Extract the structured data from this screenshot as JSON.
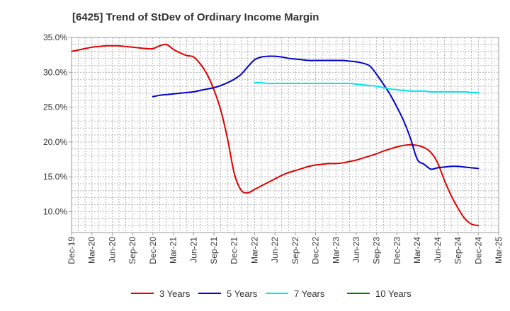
{
  "chart_data": {
    "type": "line",
    "title": "[6425]  Trend of StDev of Ordinary Income Margin",
    "xlabel": "",
    "ylabel": "",
    "x_ticks": [
      "Dec-19",
      "Mar-20",
      "Jun-20",
      "Sep-20",
      "Dec-20",
      "Mar-21",
      "Jun-21",
      "Sep-21",
      "Dec-21",
      "Mar-22",
      "Jun-22",
      "Sep-22",
      "Dec-22",
      "Mar-23",
      "Jun-23",
      "Sep-23",
      "Dec-23",
      "Mar-24",
      "Jun-24",
      "Sep-24",
      "Dec-24",
      "Mar-25"
    ],
    "y_ticks": [
      "10.0%",
      "15.0%",
      "20.0%",
      "25.0%",
      "30.0%",
      "35.0%"
    ],
    "ylim": [
      7.0,
      35.0
    ],
    "grid": true,
    "legend_position": "bottom",
    "series": [
      {
        "name": "3 Years",
        "color": "#e00000",
        "x": [
          "Dec-19",
          "Jan-20",
          "Feb-20",
          "Mar-20",
          "Apr-20",
          "May-20",
          "Jun-20",
          "Jul-20",
          "Aug-20",
          "Sep-20",
          "Oct-20",
          "Nov-20",
          "Dec-20",
          "Jan-21",
          "Feb-21",
          "Mar-21",
          "Apr-21",
          "May-21",
          "Jun-21",
          "Jul-21",
          "Aug-21",
          "Sep-21",
          "Oct-21",
          "Nov-21",
          "Dec-21",
          "Jan-22",
          "Feb-22",
          "Mar-22",
          "Apr-22",
          "May-22",
          "Jun-22",
          "Jul-22",
          "Aug-22",
          "Sep-22",
          "Oct-22",
          "Nov-22",
          "Dec-22",
          "Jan-23",
          "Feb-23",
          "Mar-23",
          "Apr-23",
          "May-23",
          "Jun-23",
          "Jul-23",
          "Aug-23",
          "Sep-23",
          "Oct-23",
          "Nov-23",
          "Dec-23",
          "Jan-24",
          "Feb-24",
          "Mar-24",
          "Apr-24",
          "May-24",
          "Jun-24",
          "Jul-24",
          "Aug-24",
          "Sep-24",
          "Oct-24",
          "Nov-24",
          "Dec-24"
        ],
        "values": [
          33.0,
          33.2,
          33.4,
          33.6,
          33.7,
          33.8,
          33.8,
          33.8,
          33.7,
          33.6,
          33.5,
          33.4,
          33.4,
          33.8,
          34.0,
          33.3,
          32.8,
          32.4,
          32.2,
          31.2,
          29.7,
          27.5,
          24.6,
          20.5,
          15.5,
          13.1,
          12.7,
          13.2,
          13.7,
          14.2,
          14.7,
          15.2,
          15.6,
          15.9,
          16.2,
          16.5,
          16.7,
          16.8,
          16.9,
          16.9,
          17.0,
          17.2,
          17.4,
          17.7,
          18.0,
          18.3,
          18.7,
          19.0,
          19.3,
          19.5,
          19.6,
          19.5,
          19.2,
          18.5,
          17.0,
          14.5,
          12.3,
          10.5,
          9.0,
          8.2,
          8.0
        ]
      },
      {
        "name": "5 Years",
        "color": "#0000cc",
        "x": [
          "Dec-20",
          "Jan-21",
          "Feb-21",
          "Mar-21",
          "Apr-21",
          "May-21",
          "Jun-21",
          "Jul-21",
          "Aug-21",
          "Sep-21",
          "Oct-21",
          "Nov-21",
          "Dec-21",
          "Jan-22",
          "Feb-22",
          "Mar-22",
          "Apr-22",
          "May-22",
          "Jun-22",
          "Jul-22",
          "Aug-22",
          "Sep-22",
          "Oct-22",
          "Nov-22",
          "Dec-22",
          "Jan-23",
          "Feb-23",
          "Mar-23",
          "Apr-23",
          "May-23",
          "Jun-23",
          "Jul-23",
          "Aug-23",
          "Sep-23",
          "Oct-23",
          "Nov-23",
          "Dec-23",
          "Jan-24",
          "Feb-24",
          "Mar-24",
          "Apr-24",
          "May-24",
          "Jun-24",
          "Jul-24",
          "Aug-24",
          "Sep-24",
          "Oct-24",
          "Nov-24",
          "Dec-24"
        ],
        "values": [
          26.5,
          26.7,
          26.8,
          26.9,
          27.0,
          27.1,
          27.2,
          27.4,
          27.6,
          27.8,
          28.1,
          28.5,
          29.0,
          29.7,
          30.8,
          31.8,
          32.2,
          32.3,
          32.3,
          32.2,
          32.0,
          31.9,
          31.8,
          31.7,
          31.7,
          31.7,
          31.7,
          31.7,
          31.7,
          31.6,
          31.5,
          31.3,
          30.9,
          29.7,
          28.3,
          26.8,
          25.0,
          23.0,
          20.5,
          17.5,
          16.8,
          16.1,
          16.3,
          16.4,
          16.5,
          16.5,
          16.4,
          16.3,
          16.2
        ]
      },
      {
        "name": "7 Years",
        "color": "#00e5ee",
        "x": [
          "Mar-22",
          "Apr-22",
          "May-22",
          "Jun-22",
          "Jul-22",
          "Aug-22",
          "Sep-22",
          "Oct-22",
          "Nov-22",
          "Dec-22",
          "Jan-23",
          "Feb-23",
          "Mar-23",
          "Apr-23",
          "May-23",
          "Jun-23",
          "Jul-23",
          "Aug-23",
          "Sep-23",
          "Oct-23",
          "Nov-23",
          "Dec-23",
          "Jan-24",
          "Feb-24",
          "Mar-24",
          "Apr-24",
          "May-24",
          "Jun-24",
          "Jul-24",
          "Aug-24",
          "Sep-24",
          "Oct-24",
          "Nov-24",
          "Dec-24"
        ],
        "values": [
          28.5,
          28.5,
          28.4,
          28.4,
          28.4,
          28.4,
          28.4,
          28.4,
          28.4,
          28.4,
          28.4,
          28.4,
          28.4,
          28.4,
          28.4,
          28.3,
          28.2,
          28.1,
          28.0,
          27.8,
          27.6,
          27.5,
          27.4,
          27.3,
          27.3,
          27.3,
          27.2,
          27.2,
          27.2,
          27.2,
          27.2,
          27.2,
          27.1,
          27.1
        ]
      },
      {
        "name": "10 Years",
        "color": "#008000",
        "x": [],
        "values": []
      }
    ]
  }
}
